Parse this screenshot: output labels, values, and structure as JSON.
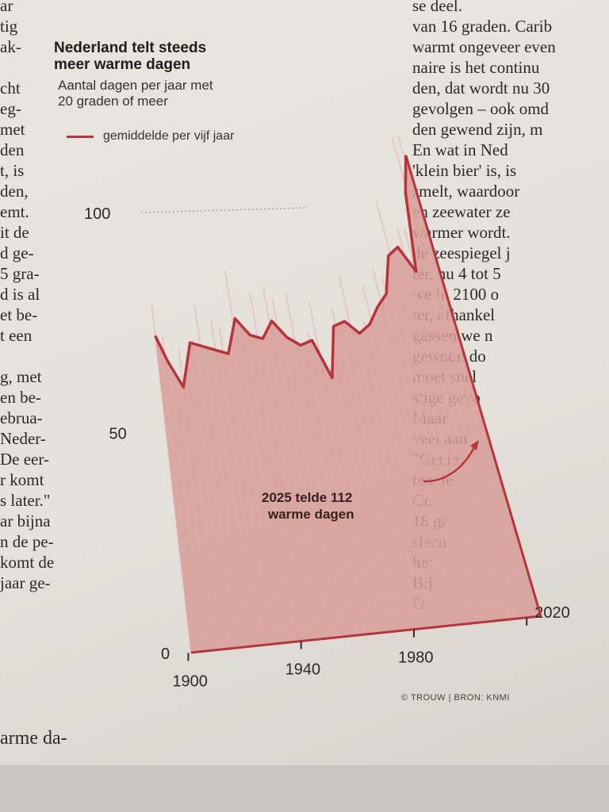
{
  "article": {
    "left_column": [
      "ar",
      "tig",
      "ak-",
      "",
      "cht",
      "eg-",
      "met",
      "den",
      "t, is",
      "den,",
      "emt.",
      "it de",
      "d ge-",
      "5 gra-",
      "d is al",
      "et be-",
      "t een",
      "",
      "g, met",
      "en be-",
      "ebrua-",
      "Neder-",
      "De eer-",
      "r komt",
      "s later.\"",
      "ar bijna",
      "n de pe-",
      "komt de",
      "jaar ge-"
    ],
    "left_bottom": "arme da-",
    "right_column": [
      "se deel.",
      "van 16 graden. Carib",
      "warmt ongeveer even",
      "naire is het continu",
      "den, dat wordt nu 30",
      "gevolgen – ook omd",
      "den gewend zijn, m",
      "En wat in Ned",
      "'klein bier' is, is",
      "smelt, waardoor",
      "en zeewater ze",
      "warmer wordt.",
      "de zeespiegel j",
      "ter, nu 4 tot 5",
      "we in 2100 o",
      "ter, afhankel",
      "gassen we n",
      "gewoon do",
      "moet snel",
      "stige gevo",
      "Maar",
      "veel aan",
      "\"Genie",
      "ten, je",
      "Oo",
      "18 gr",
      "slech",
      "het",
      "Bij",
      "O"
    ]
  },
  "chart": {
    "title_lines": [
      "Nederland telt steeds",
      "meer warme dagen"
    ],
    "subtitle_lines": [
      "Aantal dagen per jaar met",
      "20 graden of meer"
    ],
    "legend_label": "gemiddelde per vijf jaar",
    "annotation_lines": [
      "2025 telde 112",
      "warme dagen"
    ],
    "credit": "© TROUW | BRON: KNMI",
    "colors": {
      "line": "#b8343a",
      "area": "#d79d98",
      "annual": "#e8c6c1",
      "text": "#2a2a2a"
    }
  },
  "chart_data": {
    "type": "line",
    "x_ticks": [
      1900,
      1940,
      1980,
      2020
    ],
    "y_ticks": [
      0,
      50,
      100
    ],
    "xlim": [
      1901,
      2025
    ],
    "ylim": [
      0,
      112
    ],
    "series": [
      {
        "name": "gemiddelde per vijf jaar",
        "x": [
          1901,
          1905,
          1910,
          1915,
          1920,
          1925,
          1930,
          1935,
          1940,
          1945,
          1950,
          1955,
          1960,
          1965,
          1970,
          1975,
          1980,
          1985,
          1990,
          1995,
          2000,
          2005,
          2010,
          2015,
          2020,
          2025
        ],
        "values": [
          72,
          66,
          60,
          70,
          69,
          68,
          67,
          75,
          71,
          70,
          74,
          70,
          68,
          69,
          60,
          72,
          73,
          70,
          72,
          76,
          79,
          88,
          90,
          84,
          103,
          112
        ]
      }
    ]
  }
}
